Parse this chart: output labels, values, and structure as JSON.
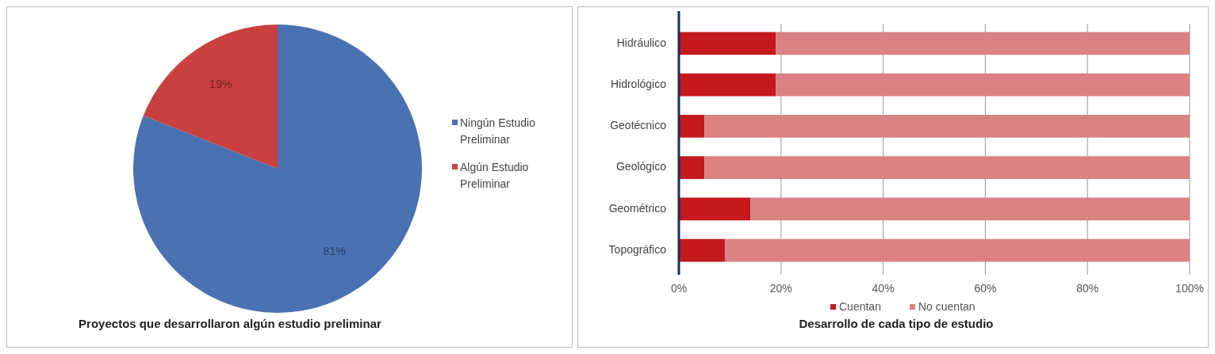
{
  "chart_data": [
    {
      "type": "pie",
      "title": "Proyectos que desarrollaron algún estudio preliminar",
      "categories": [
        "Ningún Estudio Preliminar",
        "Algún Estudio Preliminar"
      ],
      "values": [
        81,
        19
      ],
      "colors": [
        "#4a72b2",
        "#c9403f"
      ],
      "value_labels": [
        "81%",
        "19%"
      ],
      "legend": "right"
    },
    {
      "type": "bar",
      "title": "Desarrollo de cada tipo de estudio",
      "orientation": "horizontal",
      "stacked": true,
      "categories": [
        "Hidráulico",
        "Hidrológico",
        "Geotécnico",
        "Geológico",
        "Geométrico",
        "Topográfico"
      ],
      "series": [
        {
          "name": "Cuentan",
          "color": "#c4191d",
          "values": [
            19,
            19,
            5,
            5,
            14,
            9
          ]
        },
        {
          "name": "No cuentan",
          "color": "#d98283",
          "values": [
            81,
            81,
            95,
            95,
            86,
            91
          ]
        }
      ],
      "xlim": [
        0,
        100
      ],
      "xticks": [
        {
          "value": 0,
          "label": "0%"
        },
        {
          "value": 20,
          "label": "20%"
        },
        {
          "value": 40,
          "label": "40%"
        },
        {
          "value": 60,
          "label": "60%"
        },
        {
          "value": 80,
          "label": "80%"
        },
        {
          "value": 100,
          "label": "100%"
        }
      ],
      "grid": "x",
      "legend": "bottom"
    }
  ]
}
